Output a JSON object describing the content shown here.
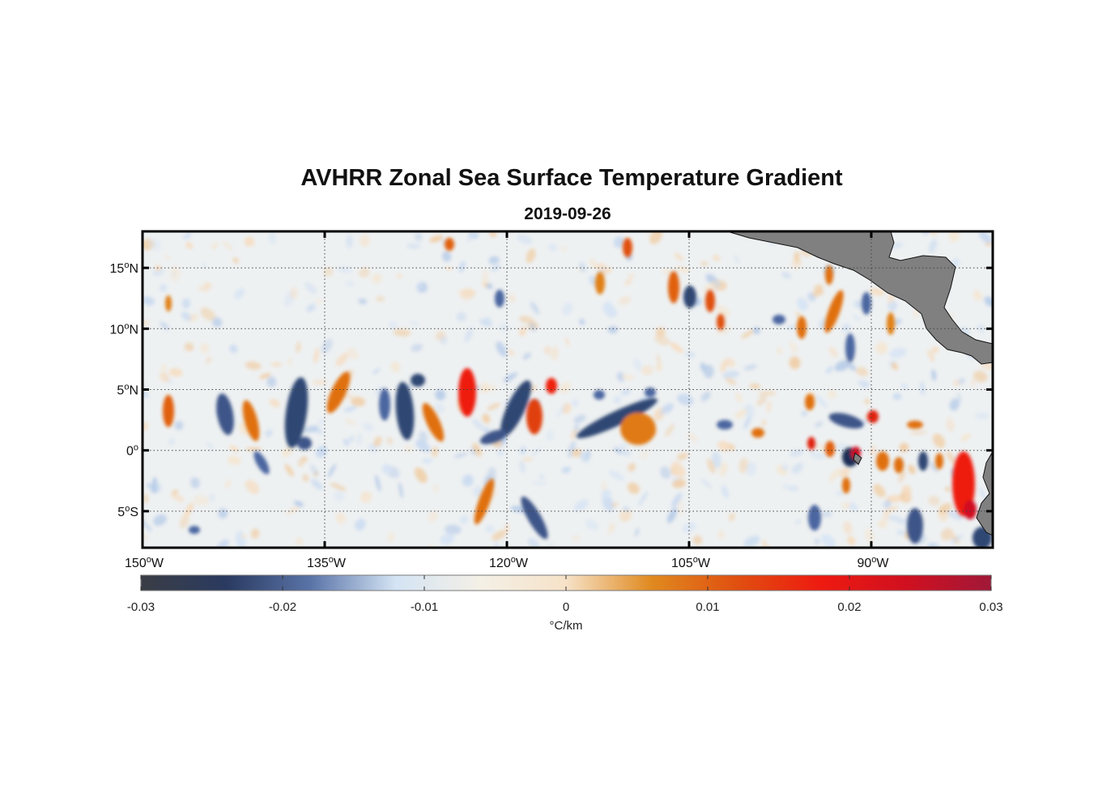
{
  "title": "AVHRR Zonal Sea Surface Temperature Gradient",
  "subtitle": "2019-09-26",
  "map": {
    "lon_range": [
      -150,
      -80
    ],
    "lat_range": [
      -8,
      18
    ],
    "grid": true,
    "land_color": "#808080",
    "x_ticks": [
      {
        "lon": -150,
        "deg": "150",
        "hemi": "W"
      },
      {
        "lon": -135,
        "deg": "135",
        "hemi": "W"
      },
      {
        "lon": -120,
        "deg": "120",
        "hemi": "W"
      },
      {
        "lon": -105,
        "deg": "105",
        "hemi": "W"
      },
      {
        "lon": -90,
        "deg": "90",
        "hemi": "W"
      }
    ],
    "y_ticks": [
      {
        "lat": 15,
        "deg": "15",
        "hemi": "N"
      },
      {
        "lat": 10,
        "deg": "10",
        "hemi": "N"
      },
      {
        "lat": 5,
        "deg": "5",
        "hemi": "N"
      },
      {
        "lat": 0,
        "deg": "0",
        "hemi": ""
      },
      {
        "lat": -5,
        "deg": "5",
        "hemi": "S"
      }
    ]
  },
  "colorbar": {
    "min": -0.03,
    "max": 0.03,
    "ticks": [
      "-0.03",
      "-0.02",
      "-0.01",
      "0",
      "0.01",
      "0.02",
      "0.03"
    ],
    "label": "°C/km",
    "colors": [
      "#3a3d45",
      "#2a3a60",
      "#5a74a8",
      "#d4e4f4",
      "#f4f0e6",
      "#f6e2c8",
      "#e08a20",
      "#e05010",
      "#ee1a10",
      "#d01020",
      "#a01838"
    ]
  }
}
